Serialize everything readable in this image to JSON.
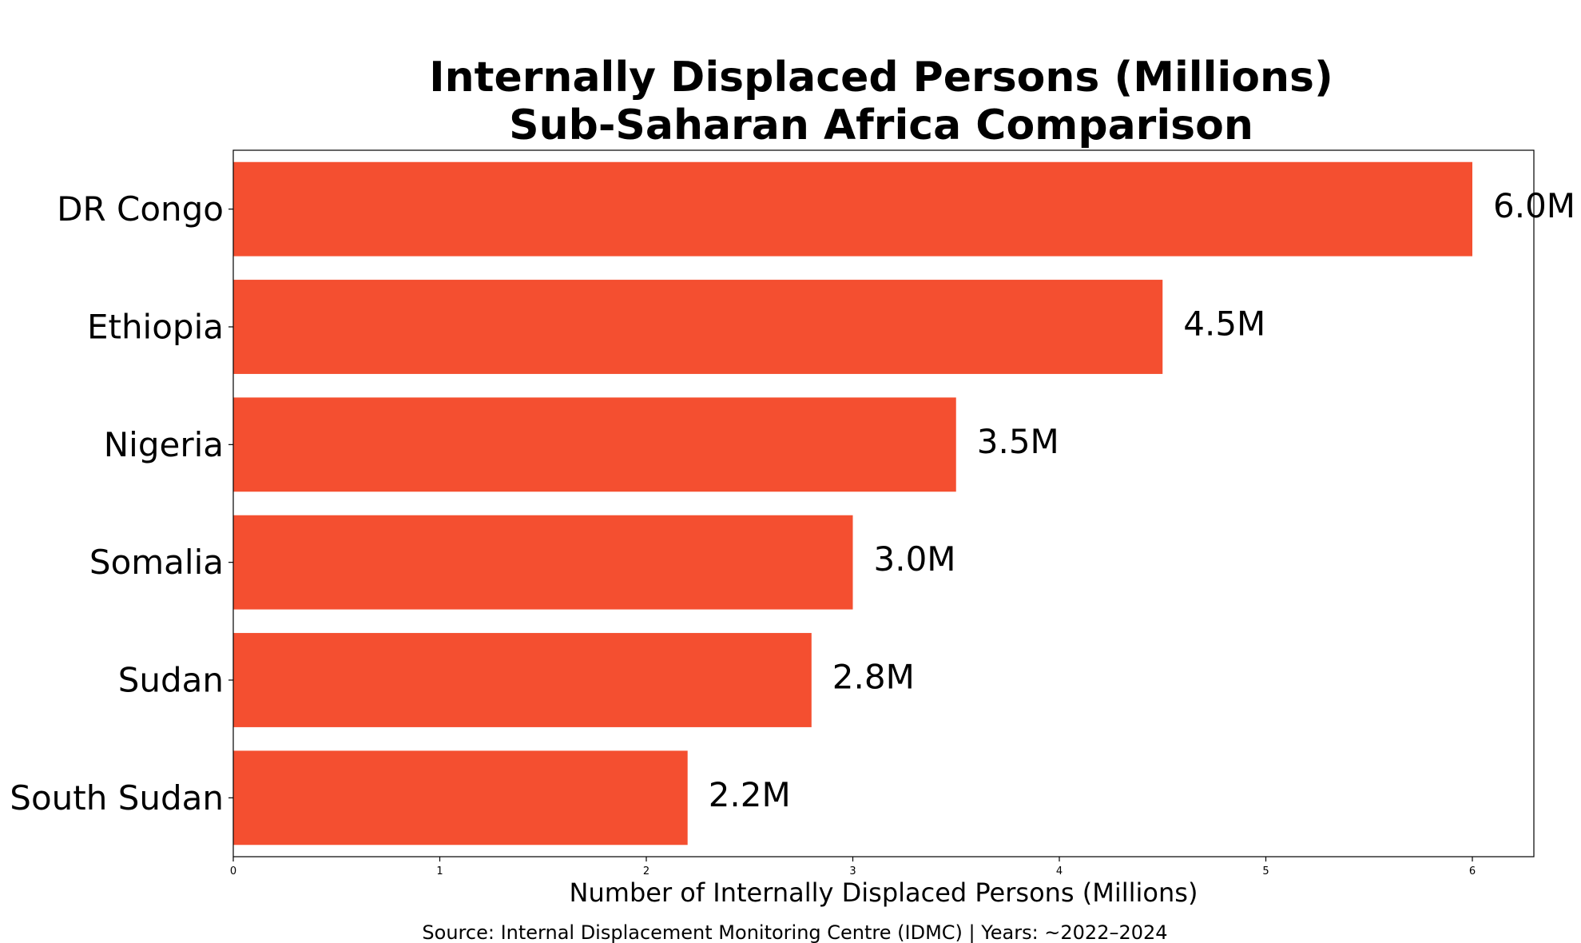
{
  "chart_data": {
    "type": "bar",
    "orientation": "horizontal",
    "title": "Internally Displaced Persons (Millions)",
    "subtitle": "Sub-Saharan Africa Comparison",
    "xlabel": "Number of Internally Displaced Persons (Millions)",
    "ylabel": "",
    "categories": [
      "DR Congo",
      "Ethiopia",
      "Nigeria",
      "Somalia",
      "Sudan",
      "South Sudan"
    ],
    "values": [
      6.0,
      4.5,
      3.5,
      3.0,
      2.8,
      2.2
    ],
    "data_labels": [
      "6.0M",
      "4.5M",
      "3.5M",
      "3.0M",
      "2.8M",
      "2.2M"
    ],
    "xticks": [
      "0",
      "1",
      "2",
      "3",
      "4",
      "5",
      "6"
    ],
    "xlim": [
      0,
      6.3
    ],
    "grid": false,
    "legend": "none",
    "bar_color": "#f44f30",
    "source_note": "Source: Internal Displacement Monitoring Centre (IDMC) | Years: ~2022–2024"
  }
}
